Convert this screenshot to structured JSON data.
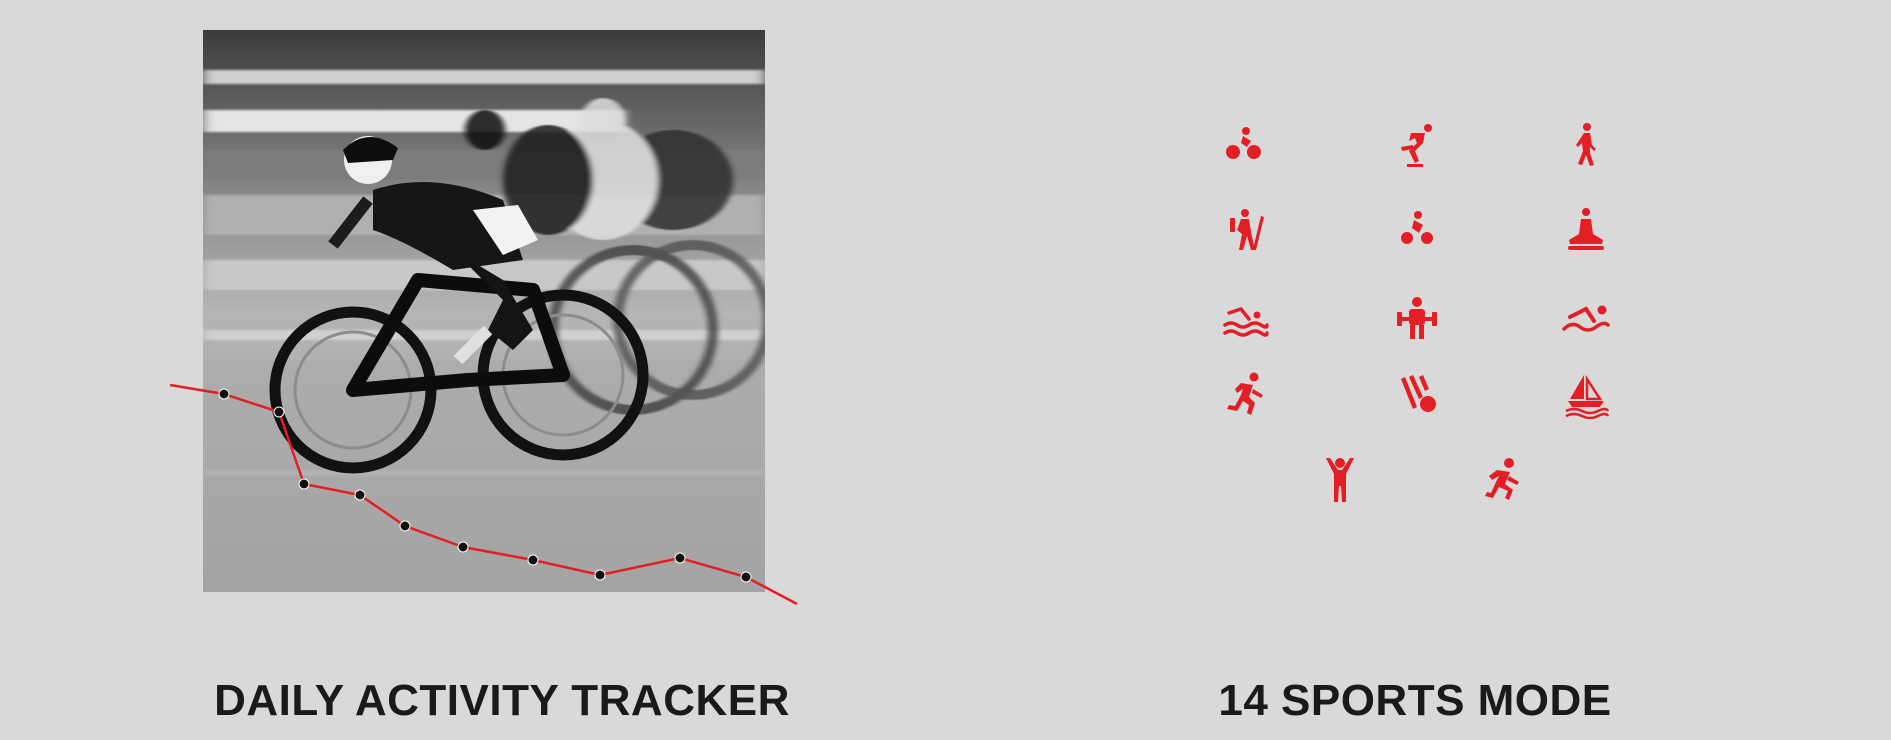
{
  "left_panel": {
    "title": "DAILY ACTIVITY TRACKER",
    "photo_icon": "cyclists-racing-photo",
    "trend_color": "#e31e24"
  },
  "right_panel": {
    "title": "14 SPORTS MODE",
    "icon_color": "#e31e24",
    "icons": [
      "outdoor-cycling-icon",
      "skating-icon",
      "walking-icon",
      "hiking-icon",
      "indoor-cycling-icon",
      "yoga-icon",
      "pool-swimming-icon",
      "weightlifting-icon",
      "open-water-swimming-icon",
      "running-icon",
      "badminton-icon",
      "sailing-icon",
      "free-exercise-icon",
      "indoor-running-icon"
    ]
  }
}
